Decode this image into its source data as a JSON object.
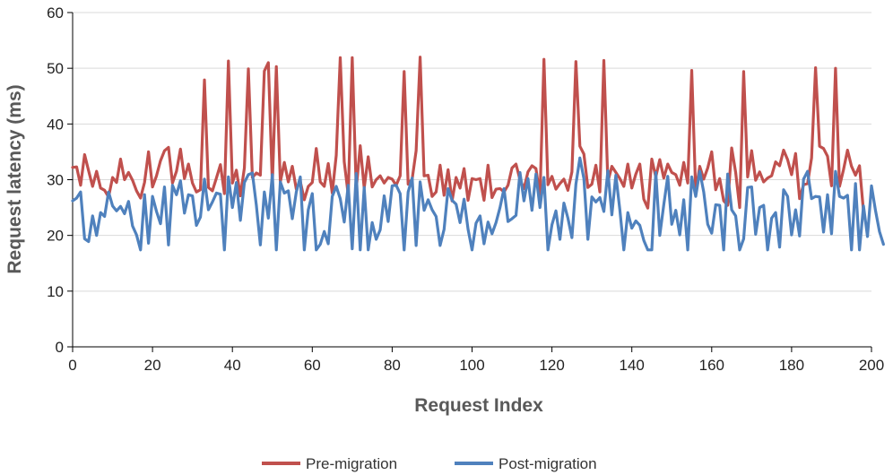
{
  "chart_data": {
    "type": "line",
    "title": "",
    "xlabel": "Request Index",
    "ylabel": "Request latency (ms)",
    "xlim": [
      0,
      200
    ],
    "ylim": [
      0,
      60
    ],
    "x_ticks": [
      0,
      20,
      40,
      60,
      80,
      100,
      120,
      140,
      160,
      180,
      200
    ],
    "y_ticks": [
      0,
      10,
      20,
      30,
      40,
      50,
      60
    ],
    "grid": "horizontal",
    "legend_position": "bottom-center",
    "series": [
      {
        "name": "Pre-migration",
        "color": "#C0504D",
        "values": [
          32.2,
          32.3,
          29.0,
          34.5,
          31.6,
          28.8,
          31.5,
          28.5,
          28.1,
          26.9,
          30.4,
          29.5,
          33.7,
          30.0,
          31.3,
          29.9,
          28.0,
          26.7,
          29.5,
          35.0,
          28.7,
          30.7,
          33.4,
          35.2,
          35.8,
          29.4,
          31.5,
          35.5,
          30.2,
          32.8,
          29.4,
          27.8,
          28.2,
          47.9,
          28.6,
          28.0,
          30.3,
          32.7,
          27.5,
          51.3,
          29.4,
          31.7,
          27.1,
          32.1,
          49.9,
          30.4,
          31.2,
          30.8,
          49.5,
          51.0,
          29.3,
          50.3,
          29.6,
          33.1,
          29.6,
          32.4,
          28.3,
          29.7,
          26.4,
          28.8,
          29.5,
          35.6,
          29.6,
          28.8,
          32.9,
          27.6,
          34.4,
          51.9,
          33.2,
          27.3,
          51.9,
          28.3,
          36.1,
          28.5,
          34.1,
          28.7,
          30.0,
          30.7,
          29.4,
          30.4,
          30.1,
          29.0,
          30.7,
          49.4,
          29.2,
          30.1,
          35.2,
          52.0,
          30.7,
          30.8,
          27.0,
          27.8,
          32.6,
          27.2,
          31.8,
          26.2,
          30.4,
          28.5,
          32.0,
          26.3,
          30.2,
          30.0,
          30.2,
          26.3,
          32.6,
          26.8,
          28.3,
          28.4,
          27.8,
          29.0,
          32.1,
          32.8,
          30.0,
          28.4,
          31.4,
          32.5,
          32.0,
          27.0,
          51.6,
          29.1,
          30.6,
          28.3,
          29.3,
          30.1,
          28.1,
          31.4,
          51.2,
          36.0,
          34.6,
          28.6,
          29.2,
          32.6,
          27.8,
          51.4,
          29.6,
          32.4,
          31.3,
          30.2,
          28.8,
          32.8,
          28.5,
          31.0,
          32.8,
          26.5,
          24.9,
          33.7,
          30.5,
          33.6,
          30.3,
          32.8,
          31.3,
          30.9,
          29.0,
          33.1,
          29.4,
          49.6,
          27.7,
          32.4,
          30.1,
          32.1,
          35.0,
          28.2,
          30.2,
          26.2,
          25.4,
          35.7,
          31.3,
          25.0,
          49.4,
          30.5,
          35.2,
          29.9,
          31.4,
          29.6,
          30.3,
          30.7,
          33.2,
          32.5,
          35.3,
          33.6,
          30.9,
          34.7,
          26.6,
          29.1,
          29.3,
          33.9,
          50.1,
          36.0,
          35.6,
          34.2,
          28.9,
          50.0,
          28.8,
          31.8,
          35.3,
          32.4,
          30.8,
          32.5,
          24.3
        ]
      },
      {
        "name": "Post-migration",
        "color": "#4F81BD",
        "values": [
          26.2,
          26.7,
          27.8,
          19.4,
          18.9,
          23.5,
          20.0,
          24.1,
          23.4,
          27.8,
          25.3,
          24.4,
          25.2,
          23.9,
          26.1,
          21.7,
          20.1,
          17.4,
          27.3,
          18.6,
          27.0,
          24.3,
          22.1,
          28.7,
          18.3,
          29.0,
          27.3,
          29.8,
          24.0,
          27.3,
          27.1,
          21.8,
          23.3,
          30.1,
          24.6,
          26.0,
          27.6,
          27.4,
          17.4,
          30.5,
          25.0,
          29.5,
          22.7,
          29.5,
          30.9,
          31.2,
          25.4,
          18.3,
          27.8,
          23.1,
          30.9,
          17.4,
          29.6,
          27.6,
          28.0,
          23.0,
          27.8,
          30.5,
          17.4,
          24.6,
          27.5,
          17.4,
          18.4,
          20.7,
          18.5,
          27.0,
          28.8,
          26.6,
          22.4,
          29.0,
          17.6,
          31.1,
          17.4,
          28.6,
          17.4,
          22.3,
          19.3,
          21.0,
          27.1,
          22.5,
          28.9,
          29.0,
          27.5,
          17.4,
          27.8,
          30.3,
          18.2,
          29.6,
          24.5,
          26.4,
          24.6,
          23.4,
          18.2,
          21.1,
          28.4,
          26.3,
          25.6,
          22.3,
          26.5,
          21.1,
          17.4,
          22.2,
          23.5,
          18.5,
          22.4,
          20.3,
          22.3,
          25.0,
          28.4,
          22.5,
          23.0,
          23.6,
          31.3,
          26.2,
          30.2,
          24.5,
          31.0,
          25.0,
          30.4,
          17.4,
          21.9,
          24.4,
          19.3,
          25.8,
          23.1,
          19.6,
          29.2,
          33.9,
          30.2,
          19.3,
          26.9,
          26.0,
          26.8,
          24.3,
          31.6,
          23.7,
          30.8,
          24.6,
          17.4,
          24.1,
          21.3,
          22.6,
          21.8,
          19.1,
          17.4,
          17.4,
          31.3,
          20.0,
          25.5,
          30.6,
          22.0,
          24.5,
          20.1,
          26.4,
          17.4,
          30.5,
          27.0,
          31.5,
          27.8,
          22.0,
          20.4,
          25.5,
          25.4,
          17.4,
          31.0,
          24.6,
          23.5,
          17.4,
          19.4,
          28.6,
          28.7,
          20.2,
          25.0,
          25.4,
          17.4,
          23.1,
          24.1,
          17.9,
          28.2,
          27.0,
          20.1,
          24.6,
          19.9,
          30.1,
          31.5,
          26.6,
          27.0,
          26.9,
          20.6,
          27.3,
          20.3,
          31.5,
          27.0,
          26.7,
          27.2,
          17.4,
          29.3,
          17.4,
          25.3,
          19.8,
          28.9,
          24.5,
          20.7,
          18.4
        ]
      }
    ]
  }
}
